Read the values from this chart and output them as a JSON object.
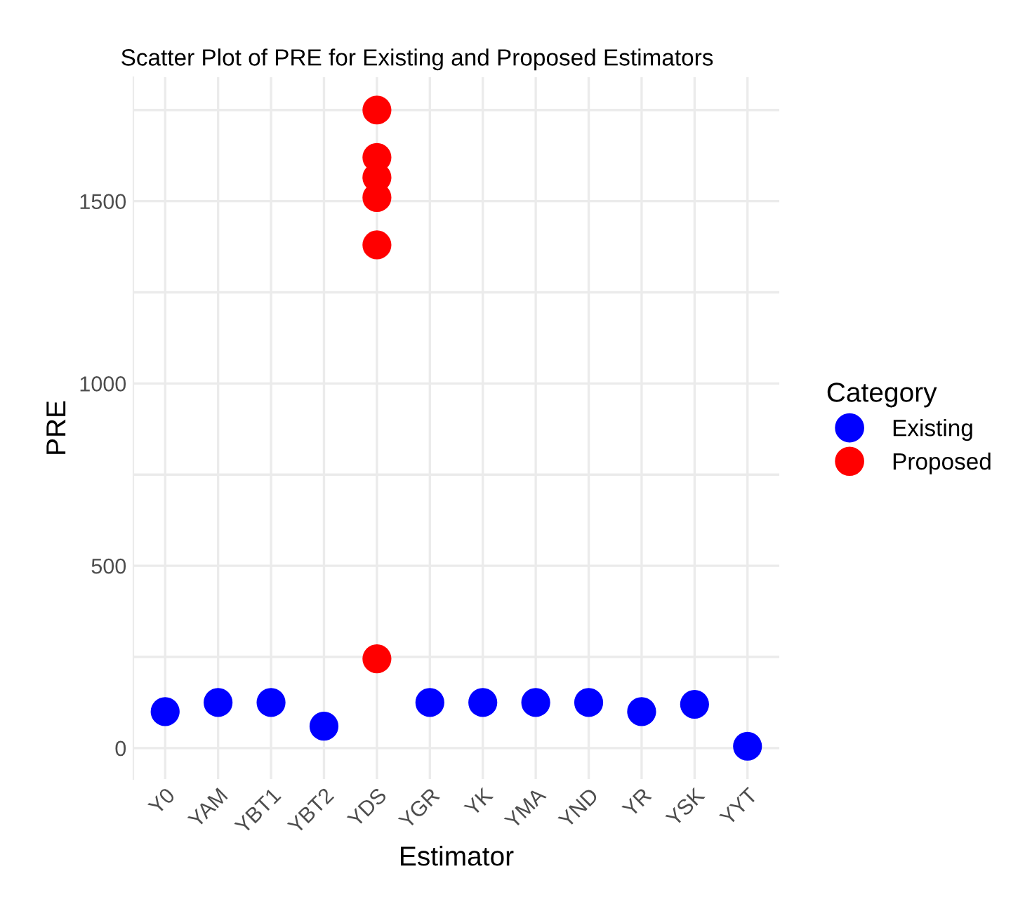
{
  "chart_data": {
    "type": "scatter",
    "title": "Scatter Plot of PRE for Existing and Proposed Estimators",
    "xlabel": "Estimator",
    "ylabel": "PRE",
    "legend_title": "Category",
    "categories": [
      "Y0",
      "YAM",
      "YBT1",
      "YBT2",
      "YDS",
      "YGR",
      "YK",
      "YMA",
      "YND",
      "YR",
      "YSK",
      "YYT"
    ],
    "series": [
      {
        "name": "Existing",
        "color": "#0000ff",
        "x": [
          "Y0",
          "YAM",
          "YBT1",
          "YBT2",
          "YGR",
          "YK",
          "YMA",
          "YND",
          "YR",
          "YSK",
          "YYT"
        ],
        "values": [
          100,
          125,
          125,
          60,
          125,
          125,
          125,
          125,
          100,
          120,
          5
        ]
      },
      {
        "name": "Proposed",
        "color": "#ff0000",
        "x": [
          "YDS",
          "YDS",
          "YDS",
          "YDS",
          "YDS",
          "YDS"
        ],
        "values": [
          1750,
          1620,
          1565,
          1510,
          1380,
          245
        ]
      }
    ],
    "ylim": [
      -85,
      1840
    ],
    "yticks": [
      0,
      {
        "value": 250,
        "label": null
      },
      500,
      {
        "value": 750,
        "label": null
      },
      1000,
      {
        "value": 1250,
        "label": null
      },
      1500,
      {
        "value": 1750,
        "label": null
      }
    ],
    "grid": true,
    "legend": "right",
    "marker": "circle"
  }
}
